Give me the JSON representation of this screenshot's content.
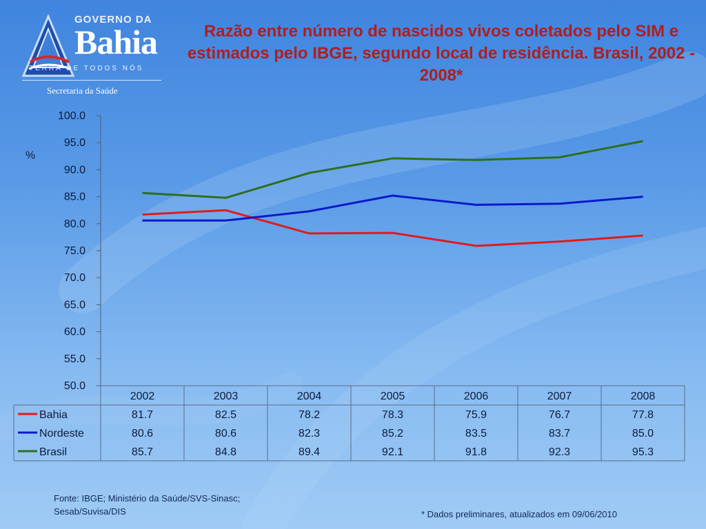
{
  "logo": {
    "government": "GOVERNO DA",
    "state": "Bahia",
    "motto": "TERRA DE TODOS NÓS",
    "department": "Secretaria da Saúde"
  },
  "footer": {
    "source": "Fonte: IBGE; Ministério da Saúde/SVS-Sinasc; Sesab/Suvisa/DIS",
    "note": "* Dados preliminares,  atualizados em 09/06/2010"
  },
  "colors": {
    "title": "#b31d1d",
    "Bahia": "#e01b1b",
    "Nordeste": "#0a19c8",
    "Brasil": "#2e6e1b",
    "table_border": "#5a6d8a"
  },
  "chart_data": {
    "type": "line",
    "title": "Razão entre número de nascidos vivos coletados pelo SIM e estimados pelo IBGE,  segundo local de residência.  Brasil, 2002 - 2008*",
    "ylabel": "%",
    "xlabel": "",
    "ylim": [
      50,
      100
    ],
    "ytick_step": 5,
    "grid": false,
    "legend": "data-table below chart",
    "categories": [
      "2002",
      "2003",
      "2004",
      "2005",
      "2006",
      "2007",
      "2008"
    ],
    "series": [
      {
        "name": "Bahia",
        "values": [
          81.7,
          82.5,
          78.2,
          78.3,
          75.9,
          76.7,
          77.8
        ]
      },
      {
        "name": "Nordeste",
        "values": [
          80.6,
          80.6,
          82.3,
          85.2,
          83.5,
          83.7,
          85.0
        ]
      },
      {
        "name": "Brasil",
        "values": [
          85.7,
          84.8,
          89.4,
          92.1,
          91.8,
          92.3,
          95.3
        ]
      }
    ]
  }
}
